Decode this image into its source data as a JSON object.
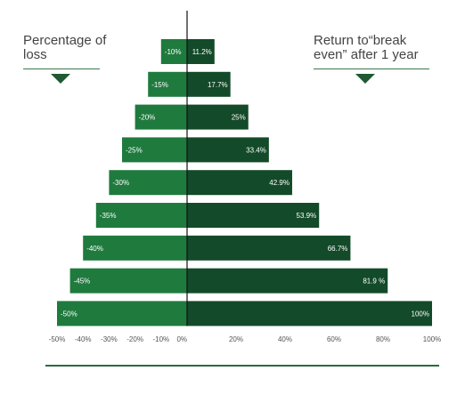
{
  "chart_data": {
    "type": "bar",
    "layout": "mirrored horizontal bar (pyramid)",
    "left_heading": "Percentage of\nloss",
    "right_heading": "Return to“break\neven” after 1 year",
    "rows": [
      {
        "loss": -10,
        "loss_label": "-10%",
        "gain": 11.2,
        "gain_label": "11.2%"
      },
      {
        "loss": -15,
        "loss_label": "-15%",
        "gain": 17.7,
        "gain_label": "17.7%"
      },
      {
        "loss": -20,
        "loss_label": "-20%",
        "gain": 25,
        "gain_label": "25%"
      },
      {
        "loss": -25,
        "loss_label": "-25%",
        "gain": 33.4,
        "gain_label": "33.4%"
      },
      {
        "loss": -30,
        "loss_label": "-30%",
        "gain": 42.9,
        "gain_label": "42.9%"
      },
      {
        "loss": -35,
        "loss_label": "-35%",
        "gain": 53.9,
        "gain_label": "53.9%"
      },
      {
        "loss": -40,
        "loss_label": "-40%",
        "gain": 66.7,
        "gain_label": "66.7%"
      },
      {
        "loss": -45,
        "loss_label": "-45%",
        "gain": 81.9,
        "gain_label": "81.9 %"
      },
      {
        "loss": -50,
        "loss_label": "-50%",
        "gain": 100,
        "gain_label": "100%"
      }
    ],
    "left_axis": {
      "range": [
        -50,
        0
      ],
      "ticks": [
        "-50%",
        "-40%",
        "-30%",
        "-20%",
        "-10%",
        "0%"
      ],
      "tick_values": [
        -50,
        -40,
        -30,
        -20,
        -10,
        0
      ]
    },
    "right_axis": {
      "range": [
        0,
        100
      ],
      "ticks": [
        "20%",
        "40%",
        "60%",
        "80%",
        "100%"
      ],
      "tick_values": [
        20,
        40,
        60,
        80,
        100
      ]
    },
    "colors": {
      "loss_bar": "#1f7a3e",
      "gain_bar": "#134a29",
      "axis_text": "#555555",
      "heading_text": "#444444",
      "rule": "#2c6b3e"
    },
    "grid": false
  }
}
